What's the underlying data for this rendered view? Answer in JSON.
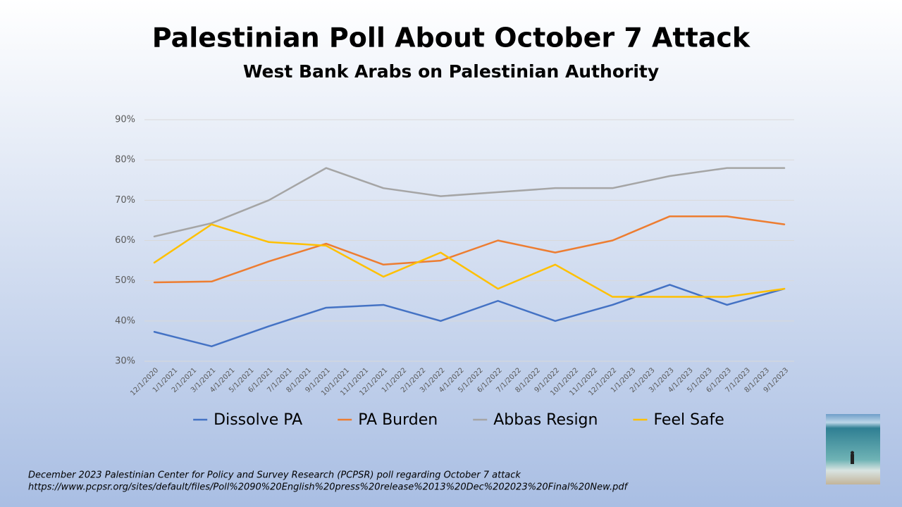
{
  "chart_data": {
    "type": "line",
    "title": "Palestinian Poll About October 7 Attack",
    "subtitle": "West Bank Arabs on Palestinian Authority",
    "categories": [
      "12/1/2020",
      "1/1/2021",
      "2/1/2021",
      "3/1/2021",
      "4/1/2021",
      "5/1/2021",
      "6/1/2021",
      "7/1/2021",
      "8/1/2021",
      "9/1/2021",
      "10/1/2021",
      "11/1/2021",
      "12/1/2021",
      "1/1/2022",
      "2/1/2022",
      "3/1/2022",
      "4/1/2022",
      "5/1/2022",
      "6/1/2022",
      "7/1/2022",
      "8/1/2022",
      "9/1/2022",
      "10/1/2022",
      "11/1/2022",
      "12/1/2022",
      "1/1/2023",
      "2/1/2023",
      "3/1/2023",
      "4/1/2023",
      "5/1/2023",
      "6/1/2023",
      "7/1/2023",
      "8/1/2023",
      "9/1/2023"
    ],
    "series": [
      {
        "name": "Dissolve PA",
        "color": "#4472c4",
        "x": [
          "12/1/2020",
          "3/1/2021",
          "6/1/2021",
          "9/1/2021",
          "12/1/2021",
          "3/1/2022",
          "6/1/2022",
          "9/1/2022",
          "12/1/2022",
          "3/1/2023",
          "6/1/2023",
          "9/1/2023"
        ],
        "values": [
          37.3,
          33.7,
          38.7,
          43.3,
          44,
          40,
          45,
          40,
          44,
          49,
          44,
          48
        ]
      },
      {
        "name": "PA Burden",
        "color": "#ed7d31",
        "x": [
          "12/1/2020",
          "3/1/2021",
          "6/1/2021",
          "9/1/2021",
          "12/1/2021",
          "3/1/2022",
          "6/1/2022",
          "9/1/2022",
          "12/1/2022",
          "3/1/2023",
          "6/1/2023",
          "9/1/2023"
        ],
        "values": [
          49.6,
          49.8,
          54.8,
          59.2,
          54,
          55,
          60,
          57,
          60,
          66,
          66,
          64
        ]
      },
      {
        "name": "Abbas Resign",
        "color": "#a5a5a5",
        "x": [
          "12/1/2020",
          "3/1/2021",
          "6/1/2021",
          "9/1/2021",
          "12/1/2021",
          "3/1/2022",
          "6/1/2022",
          "9/1/2022",
          "12/1/2022",
          "3/1/2023",
          "6/1/2023",
          "9/1/2023"
        ],
        "values": [
          61,
          64.3,
          70,
          78,
          73,
          71,
          72,
          73,
          73,
          76,
          78,
          78
        ]
      },
      {
        "name": "Feel Safe",
        "color": "#ffc000",
        "x": [
          "12/1/2020",
          "3/1/2021",
          "6/1/2021",
          "9/1/2021",
          "12/1/2021",
          "3/1/2022",
          "6/1/2022",
          "9/1/2022",
          "12/1/2022",
          "3/1/2023",
          "6/1/2023",
          "9/1/2023"
        ],
        "values": [
          54.5,
          64,
          59.6,
          58.7,
          51,
          57,
          48,
          54,
          46,
          46,
          46,
          48
        ]
      }
    ],
    "ylim": [
      30,
      90
    ],
    "yticks": [
      {
        "value": 30,
        "label": "30%"
      },
      {
        "value": 40,
        "label": "40%"
      },
      {
        "value": 50,
        "label": "50%"
      },
      {
        "value": 60,
        "label": "60%"
      },
      {
        "value": 70,
        "label": "70%"
      },
      {
        "value": 80,
        "label": "80%"
      },
      {
        "value": 90,
        "label": "90%"
      }
    ],
    "grid": true,
    "legend": "bottom",
    "footnote": [
      "December 2023 Palestinian Center for Policy and Survey Research (PCPSR) poll regarding October 7 attack",
      "https://www.pcpsr.org/sites/default/files/Poll%2090%20English%20press%20release%2013%20Dec%202023%20Final%20New.pdf"
    ]
  }
}
